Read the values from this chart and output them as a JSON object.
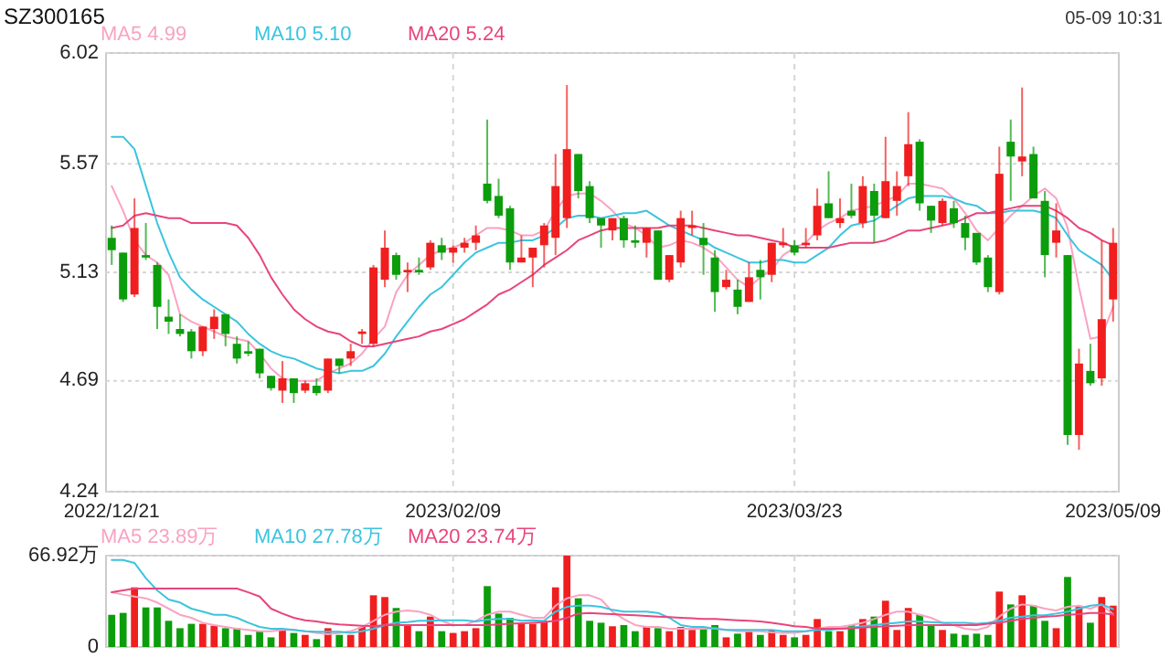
{
  "chart_data": [
    {
      "type": "candlestick",
      "title": "SZ300165",
      "annotations": [
        "05-09 10:31"
      ],
      "categories": [
        "2022/12/21",
        null,
        null,
        null,
        null,
        null,
        null,
        null,
        null,
        null,
        null,
        null,
        null,
        null,
        null,
        null,
        null,
        null,
        null,
        null,
        null,
        null,
        null,
        null,
        null,
        null,
        null,
        null,
        null,
        null,
        "2023/02/09",
        null,
        null,
        null,
        null,
        null,
        null,
        null,
        null,
        null,
        null,
        null,
        null,
        null,
        null,
        null,
        null,
        null,
        null,
        null,
        null,
        null,
        null,
        null,
        null,
        null,
        null,
        null,
        null,
        null,
        "2023/03/23",
        null,
        null,
        null,
        null,
        null,
        null,
        null,
        null,
        null,
        null,
        null,
        null,
        null,
        null,
        null,
        null,
        null,
        null,
        null,
        null,
        null,
        null,
        null,
        null,
        null,
        null,
        null,
        "2023/05/09"
      ],
      "ohlc": [
        [
          5.27,
          5.32,
          5.16,
          5.22
        ],
        [
          5.21,
          5.21,
          5.01,
          5.02
        ],
        [
          5.04,
          5.43,
          5.03,
          5.31
        ],
        [
          5.2,
          5.33,
          5.18,
          5.19
        ],
        [
          5.16,
          5.17,
          4.9,
          4.99
        ],
        [
          4.95,
          5.02,
          4.88,
          4.93
        ],
        [
          4.9,
          4.96,
          4.87,
          4.88
        ],
        [
          4.89,
          4.9,
          4.78,
          4.81
        ],
        [
          4.81,
          4.91,
          4.79,
          4.91
        ],
        [
          4.9,
          4.98,
          4.86,
          4.95
        ],
        [
          4.96,
          4.96,
          4.83,
          4.88
        ],
        [
          4.84,
          4.87,
          4.76,
          4.78
        ],
        [
          4.81,
          4.85,
          4.79,
          4.8
        ],
        [
          4.82,
          4.82,
          4.7,
          4.72
        ],
        [
          4.71,
          4.71,
          4.65,
          4.66
        ],
        [
          4.65,
          4.77,
          4.6,
          4.7
        ],
        [
          4.7,
          4.7,
          4.6,
          4.64
        ],
        [
          4.65,
          4.69,
          4.64,
          4.68
        ],
        [
          4.67,
          4.7,
          4.63,
          4.64
        ],
        [
          4.65,
          4.78,
          4.64,
          4.78
        ],
        [
          4.78,
          4.78,
          4.72,
          4.75
        ],
        [
          4.78,
          4.84,
          4.75,
          4.81
        ],
        [
          4.88,
          4.9,
          4.84,
          4.89
        ],
        [
          4.84,
          5.16,
          4.83,
          5.15
        ],
        [
          5.1,
          5.3,
          5.07,
          5.23
        ],
        [
          5.2,
          5.21,
          5.1,
          5.12
        ],
        [
          5.13,
          5.17,
          5.05,
          5.14
        ],
        [
          5.14,
          5.19,
          5.12,
          5.13
        ],
        [
          5.15,
          5.26,
          5.14,
          5.25
        ],
        [
          5.24,
          5.27,
          5.18,
          5.21
        ],
        [
          5.21,
          5.24,
          5.17,
          5.23
        ],
        [
          5.23,
          5.27,
          5.21,
          5.25
        ],
        [
          5.25,
          5.32,
          5.22,
          5.28
        ],
        [
          5.49,
          5.75,
          5.41,
          5.42
        ],
        [
          5.44,
          5.51,
          5.35,
          5.36
        ],
        [
          5.39,
          5.4,
          5.14,
          5.17
        ],
        [
          5.17,
          5.28,
          5.17,
          5.19
        ],
        [
          5.19,
          5.23,
          5.07,
          5.23
        ],
        [
          5.24,
          5.33,
          5.15,
          5.32
        ],
        [
          5.27,
          5.61,
          5.2,
          5.48
        ],
        [
          5.35,
          5.89,
          5.31,
          5.63
        ],
        [
          5.61,
          5.61,
          5.43,
          5.46
        ],
        [
          5.48,
          5.5,
          5.33,
          5.35
        ],
        [
          5.35,
          5.35,
          5.23,
          5.32
        ],
        [
          5.3,
          5.35,
          5.26,
          5.35
        ],
        [
          5.35,
          5.36,
          5.23,
          5.26
        ],
        [
          5.26,
          5.32,
          5.23,
          5.25
        ],
        [
          5.25,
          5.31,
          5.19,
          5.31
        ],
        [
          5.3,
          5.3,
          5.1,
          5.1
        ],
        [
          5.1,
          5.2,
          5.09,
          5.2
        ],
        [
          5.17,
          5.38,
          5.15,
          5.35
        ],
        [
          5.31,
          5.38,
          5.28,
          5.32
        ],
        [
          5.27,
          5.33,
          5.12,
          5.24
        ],
        [
          5.19,
          5.22,
          4.97,
          5.05
        ],
        [
          5.07,
          5.14,
          5.06,
          5.1
        ],
        [
          5.06,
          5.1,
          4.96,
          4.99
        ],
        [
          5.01,
          5.17,
          5.01,
          5.11
        ],
        [
          5.14,
          5.18,
          5.02,
          5.11
        ],
        [
          5.12,
          5.25,
          5.09,
          5.25
        ],
        [
          5.24,
          5.31,
          5.23,
          5.25
        ],
        [
          5.24,
          5.26,
          5.2,
          5.21
        ],
        [
          5.24,
          5.31,
          5.23,
          5.25
        ],
        [
          5.28,
          5.47,
          5.26,
          5.4
        ],
        [
          5.41,
          5.54,
          5.35,
          5.35
        ],
        [
          5.33,
          5.43,
          5.31,
          5.35
        ],
        [
          5.38,
          5.49,
          5.35,
          5.36
        ],
        [
          5.33,
          5.52,
          5.31,
          5.48
        ],
        [
          5.46,
          5.49,
          5.25,
          5.36
        ],
        [
          5.35,
          5.68,
          5.35,
          5.5
        ],
        [
          5.42,
          5.54,
          5.36,
          5.48
        ],
        [
          5.52,
          5.78,
          5.48,
          5.65
        ],
        [
          5.66,
          5.67,
          5.38,
          5.41
        ],
        [
          5.4,
          5.4,
          5.29,
          5.34
        ],
        [
          5.33,
          5.43,
          5.32,
          5.42
        ],
        [
          5.39,
          5.42,
          5.31,
          5.33
        ],
        [
          5.33,
          5.36,
          5.22,
          5.27
        ],
        [
          5.29,
          5.29,
          5.16,
          5.17
        ],
        [
          5.19,
          5.2,
          5.05,
          5.07
        ],
        [
          5.05,
          5.64,
          5.04,
          5.53
        ],
        [
          5.66,
          5.75,
          5.42,
          5.6
        ],
        [
          5.58,
          5.88,
          5.52,
          5.6
        ],
        [
          5.61,
          5.64,
          5.43,
          5.43
        ],
        [
          5.42,
          5.46,
          5.11,
          5.2
        ],
        [
          5.25,
          5.41,
          5.19,
          5.3
        ],
        [
          5.2,
          5.2,
          4.43,
          4.47
        ],
        [
          4.47,
          4.82,
          4.41,
          4.76
        ],
        [
          4.73,
          4.84,
          4.67,
          4.68
        ],
        [
          4.7,
          5.26,
          4.67,
          4.94
        ],
        [
          5.02,
          5.31,
          4.93,
          5.25
        ]
      ],
      "colors": [
        "#0b9d0b",
        "#0b9d0b",
        "#f01e1e",
        "#0b9d0b",
        "#0b9d0b",
        "#0b9d0b",
        "#0b9d0b",
        "#0b9d0b",
        "#f01e1e",
        "#f01e1e",
        "#0b9d0b",
        "#0b9d0b",
        "#0b9d0b",
        "#0b9d0b",
        "#0b9d0b",
        "#f01e1e",
        "#0b9d0b",
        "#f01e1e",
        "#0b9d0b",
        "#f01e1e",
        "#0b9d0b",
        "#f01e1e",
        "#f01e1e",
        "#f01e1e",
        "#f01e1e",
        "#0b9d0b",
        "#f01e1e",
        "#0b9d0b",
        "#f01e1e",
        "#0b9d0b",
        "#f01e1e",
        "#f01e1e",
        "#f01e1e",
        "#0b9d0b",
        "#0b9d0b",
        "#0b9d0b",
        "#f01e1e",
        "#f01e1e",
        "#f01e1e",
        "#f01e1e",
        "#f01e1e",
        "#0b9d0b",
        "#0b9d0b",
        "#0b9d0b",
        "#f01e1e",
        "#0b9d0b",
        "#0b9d0b",
        "#f01e1e",
        "#0b9d0b",
        "#f01e1e",
        "#f01e1e",
        "#f01e1e",
        "#0b9d0b",
        "#0b9d0b",
        "#f01e1e",
        "#0b9d0b",
        "#f01e1e",
        "#0b9d0b",
        "#f01e1e",
        "#f01e1e",
        "#0b9d0b",
        "#f01e1e",
        "#f01e1e",
        "#0b9d0b",
        "#f01e1e",
        "#0b9d0b",
        "#f01e1e",
        "#0b9d0b",
        "#f01e1e",
        "#f01e1e",
        "#f01e1e",
        "#0b9d0b",
        "#0b9d0b",
        "#f01e1e",
        "#0b9d0b",
        "#0b9d0b",
        "#0b9d0b",
        "#0b9d0b",
        "#f01e1e",
        "#0b9d0b",
        "#f01e1e",
        "#0b9d0b",
        "#0b9d0b",
        "#f01e1e",
        "#0b9d0b",
        "#f01e1e",
        "#0b9d0b",
        "#f01e1e",
        "#f01e1e"
      ],
      "series": [
        {
          "name": "MA5 4.99",
          "type": "line",
          "color": "#f9a3c2",
          "values": [
            5.48,
            5.38,
            5.26,
            5.2,
            5.17,
            5.12,
            4.96,
            4.93,
            4.91,
            4.89,
            4.87,
            4.86,
            4.85,
            4.8,
            4.74,
            4.7,
            4.69,
            4.69,
            4.69,
            4.72,
            4.74,
            4.76,
            4.8,
            4.86,
            4.91,
            5.05,
            5.12,
            5.16,
            5.2,
            5.22,
            5.23,
            5.25,
            5.28,
            5.31,
            5.31,
            5.3,
            5.28,
            5.28,
            5.3,
            5.38,
            5.44,
            5.45,
            5.45,
            5.42,
            5.38,
            5.33,
            5.31,
            5.28,
            5.23,
            5.24,
            5.26,
            5.25,
            5.23,
            5.2,
            5.15,
            5.1,
            5.07,
            5.11,
            5.14,
            5.2,
            5.23,
            5.25,
            5.3,
            5.33,
            5.35,
            5.38,
            5.39,
            5.4,
            5.42,
            5.44,
            5.49,
            5.49,
            5.48,
            5.47,
            5.43,
            5.37,
            5.3,
            5.26,
            5.31,
            5.36,
            5.4,
            5.44,
            5.47,
            5.43,
            5.31,
            5.07,
            4.86,
            4.87,
            4.99
          ]
        },
        {
          "name": "MA10 5.10",
          "type": "line",
          "color": "#3cc4de",
          "values": [
            5.68,
            5.68,
            5.63,
            5.48,
            5.33,
            5.21,
            5.11,
            5.06,
            5.02,
            4.99,
            4.96,
            4.93,
            4.88,
            4.84,
            4.81,
            4.79,
            4.78,
            4.76,
            4.74,
            4.73,
            4.72,
            4.73,
            4.73,
            4.75,
            4.8,
            4.87,
            4.93,
            4.99,
            5.04,
            5.07,
            5.12,
            5.17,
            5.21,
            5.23,
            5.25,
            5.25,
            5.26,
            5.26,
            5.28,
            5.31,
            5.35,
            5.36,
            5.36,
            5.35,
            5.36,
            5.37,
            5.37,
            5.38,
            5.35,
            5.32,
            5.3,
            5.28,
            5.26,
            5.23,
            5.21,
            5.19,
            5.17,
            5.17,
            5.18,
            5.18,
            5.17,
            5.17,
            5.2,
            5.23,
            5.28,
            5.32,
            5.33,
            5.34,
            5.37,
            5.4,
            5.43,
            5.44,
            5.44,
            5.44,
            5.43,
            5.41,
            5.4,
            5.37,
            5.37,
            5.38,
            5.38,
            5.38,
            5.37,
            5.35,
            5.28,
            5.22,
            5.19,
            5.16,
            5.1
          ]
        },
        {
          "name": "MA20 5.24",
          "type": "line",
          "color": "#e8457c",
          "values": [
            5.31,
            5.32,
            5.36,
            5.37,
            5.36,
            5.35,
            5.35,
            5.33,
            5.33,
            5.33,
            5.33,
            5.32,
            5.27,
            5.2,
            5.11,
            5.04,
            4.98,
            4.94,
            4.91,
            4.89,
            4.88,
            4.85,
            4.83,
            4.83,
            4.84,
            4.85,
            4.86,
            4.87,
            4.89,
            4.9,
            4.92,
            4.94,
            4.97,
            5.0,
            5.04,
            5.06,
            5.09,
            5.12,
            5.16,
            5.19,
            5.22,
            5.26,
            5.28,
            5.3,
            5.31,
            5.31,
            5.31,
            5.31,
            5.31,
            5.32,
            5.32,
            5.32,
            5.31,
            5.3,
            5.29,
            5.28,
            5.28,
            5.27,
            5.26,
            5.25,
            5.23,
            5.23,
            5.23,
            5.23,
            5.24,
            5.25,
            5.25,
            5.25,
            5.26,
            5.28,
            5.3,
            5.3,
            5.31,
            5.32,
            5.33,
            5.35,
            5.37,
            5.37,
            5.38,
            5.39,
            5.4,
            5.4,
            5.4,
            5.38,
            5.35,
            5.31,
            5.29,
            5.26,
            5.24
          ]
        }
      ],
      "ylim": [
        4.24,
        6.02
      ],
      "yticks": [
        6.02,
        5.57,
        5.13,
        4.69,
        4.24
      ],
      "grid": true,
      "legend": "top left"
    },
    {
      "type": "bar",
      "categories": [
        "2022/12/21",
        null,
        null,
        null,
        null,
        null,
        null,
        null,
        null,
        null,
        null,
        null,
        null,
        null,
        null,
        null,
        null,
        null,
        null,
        null,
        null,
        null,
        null,
        null,
        null,
        null,
        null,
        null,
        null,
        null,
        "2023/02/09",
        null,
        null,
        null,
        null,
        null,
        null,
        null,
        null,
        null,
        null,
        null,
        null,
        null,
        null,
        null,
        null,
        null,
        null,
        null,
        null,
        null,
        null,
        null,
        null,
        null,
        null,
        null,
        null,
        null,
        "2023/03/23",
        null,
        null,
        null,
        null,
        null,
        null,
        null,
        null,
        null,
        null,
        null,
        null,
        null,
        null,
        null,
        null,
        null,
        null,
        null,
        null,
        null,
        null,
        null,
        null,
        null,
        null,
        null,
        "2023/05/09"
      ],
      "values": [
        23.6,
        25.0,
        43.7,
        29.0,
        29.0,
        19.2,
        13.8,
        17.0,
        17.0,
        15.6,
        13.8,
        13.8,
        8.9,
        11.6,
        7.1,
        13.4,
        10.3,
        8.9,
        5.8,
        13.8,
        8.9,
        8.9,
        14.7,
        37.9,
        36.6,
        28.6,
        15.6,
        11.6,
        22.3,
        11.6,
        10.3,
        11.6,
        13.8,
        44.6,
        24.5,
        21.4,
        17.0,
        17.0,
        19.2,
        43.7,
        66.92,
        35.7,
        19.2,
        17.8,
        15.2,
        16.1,
        11.6,
        14.7,
        13.8,
        11.6,
        14.7,
        12.5,
        13.8,
        16.1,
        7.1,
        9.8,
        11.6,
        8.9,
        12.5,
        8.9,
        7.1,
        8.9,
        20.5,
        11.6,
        11.6,
        16.1,
        20.5,
        22.3,
        33.9,
        12.5,
        28.6,
        23.6,
        15.6,
        12.5,
        9.8,
        8.9,
        9.8,
        8.9,
        40.6,
        31.2,
        37.9,
        30.3,
        19.2,
        13.8,
        51.3,
        29.4,
        17.8,
        36.6,
        30.3
      ],
      "colors": [
        "#0b9d0b",
        "#0b9d0b",
        "#f01e1e",
        "#0b9d0b",
        "#0b9d0b",
        "#0b9d0b",
        "#0b9d0b",
        "#0b9d0b",
        "#f01e1e",
        "#f01e1e",
        "#0b9d0b",
        "#0b9d0b",
        "#0b9d0b",
        "#0b9d0b",
        "#0b9d0b",
        "#f01e1e",
        "#0b9d0b",
        "#f01e1e",
        "#0b9d0b",
        "#f01e1e",
        "#0b9d0b",
        "#f01e1e",
        "#f01e1e",
        "#f01e1e",
        "#f01e1e",
        "#0b9d0b",
        "#f01e1e",
        "#0b9d0b",
        "#f01e1e",
        "#0b9d0b",
        "#f01e1e",
        "#f01e1e",
        "#f01e1e",
        "#0b9d0b",
        "#0b9d0b",
        "#0b9d0b",
        "#f01e1e",
        "#f01e1e",
        "#f01e1e",
        "#f01e1e",
        "#f01e1e",
        "#0b9d0b",
        "#0b9d0b",
        "#0b9d0b",
        "#f01e1e",
        "#0b9d0b",
        "#0b9d0b",
        "#f01e1e",
        "#0b9d0b",
        "#f01e1e",
        "#f01e1e",
        "#f01e1e",
        "#0b9d0b",
        "#0b9d0b",
        "#f01e1e",
        "#0b9d0b",
        "#f01e1e",
        "#0b9d0b",
        "#f01e1e",
        "#f01e1e",
        "#0b9d0b",
        "#f01e1e",
        "#f01e1e",
        "#0b9d0b",
        "#f01e1e",
        "#0b9d0b",
        "#f01e1e",
        "#0b9d0b",
        "#f01e1e",
        "#f01e1e",
        "#f01e1e",
        "#0b9d0b",
        "#0b9d0b",
        "#f01e1e",
        "#0b9d0b",
        "#0b9d0b",
        "#0b9d0b",
        "#0b9d0b",
        "#f01e1e",
        "#0b9d0b",
        "#f01e1e",
        "#0b9d0b",
        "#0b9d0b",
        "#f01e1e",
        "#0b9d0b",
        "#f01e1e",
        "#0b9d0b",
        "#f01e1e",
        "#f01e1e"
      ],
      "series": [
        {
          "name": "MA5 23.89万",
          "type": "line",
          "color": "#f9a3c2",
          "values": [
            40.1,
            38.4,
            37.0,
            35.7,
            32.6,
            28.1,
            23.6,
            21.4,
            17.8,
            16.1,
            14.7,
            13.4,
            12.5,
            11.6,
            11.6,
            12.5,
            12.5,
            11.6,
            10.3,
            9.4,
            10.3,
            11.6,
            14.7,
            19.2,
            23.6,
            25.9,
            26.8,
            25.9,
            23.6,
            19.2,
            16.1,
            16.1,
            19.2,
            23.6,
            25.9,
            25.9,
            23.6,
            21.4,
            21.4,
            30.3,
            35.7,
            37.9,
            37.9,
            34.8,
            25.9,
            20.5,
            16.1,
            14.7,
            14.7,
            13.4,
            13.4,
            13.4,
            13.4,
            13.8,
            12.5,
            11.6,
            11.6,
            11.6,
            10.7,
            10.3,
            10.3,
            11.6,
            13.4,
            14.7,
            14.7,
            16.1,
            17.8,
            20.5,
            23.6,
            25.9,
            25.9,
            23.6,
            21.4,
            17.8,
            16.1,
            13.4,
            12.5,
            14.7,
            22.3,
            28.1,
            31.2,
            30.3,
            28.1,
            26.8,
            29.4,
            30.3,
            28.1,
            31.2,
            23.89
          ]
        },
        {
          "name": "MA10 27.78万",
          "type": "line",
          "color": "#3cc4de",
          "values": [
            63.8,
            63.8,
            61.6,
            50.4,
            41.5,
            34.8,
            32.6,
            28.1,
            25.9,
            23.6,
            23.6,
            21.4,
            17.8,
            14.7,
            13.4,
            13.4,
            12.5,
            11.6,
            11.2,
            11.2,
            11.2,
            10.3,
            11.6,
            13.4,
            16.1,
            17.8,
            18.2,
            19.2,
            19.2,
            19.6,
            19.6,
            19.6,
            18.7,
            20.1,
            20.5,
            20.5,
            19.2,
            19.6,
            19.2,
            25.9,
            29.4,
            30.3,
            30.3,
            29.4,
            27.2,
            25.9,
            25.9,
            25.9,
            25.0,
            21.4,
            16.1,
            14.7,
            14.7,
            13.4,
            12.5,
            12.5,
            12.5,
            12.5,
            12.5,
            11.6,
            11.6,
            11.6,
            12.5,
            12.5,
            13.4,
            14.3,
            15.2,
            16.1,
            17.0,
            17.8,
            18.7,
            18.7,
            18.2,
            17.8,
            17.8,
            17.8,
            17.0,
            17.8,
            19.2,
            21.4,
            22.3,
            23.2,
            23.2,
            24.5,
            25.9,
            28.1,
            30.3,
            31.2,
            27.78
          ]
        },
        {
          "name": "MA20 23.74万",
          "type": "line",
          "color": "#e8457c",
          "values": [
            40.1,
            41.5,
            42.8,
            42.8,
            42.8,
            42.8,
            42.8,
            42.8,
            42.8,
            42.8,
            42.8,
            42.8,
            40.1,
            37.0,
            28.1,
            24.5,
            21.4,
            19.6,
            18.7,
            17.4,
            16.5,
            16.1,
            15.6,
            15.2,
            16.1,
            16.1,
            16.1,
            16.1,
            16.1,
            16.1,
            16.1,
            16.1,
            16.1,
            16.1,
            16.5,
            17.0,
            17.4,
            17.8,
            18.3,
            19.2,
            21.4,
            24.5,
            25.0,
            24.5,
            24.1,
            23.6,
            23.2,
            22.8,
            22.3,
            21.9,
            21.4,
            21.0,
            20.5,
            20.5,
            20.1,
            19.6,
            19.2,
            18.7,
            17.8,
            16.5,
            15.2,
            14.7,
            13.4,
            13.4,
            13.4,
            13.8,
            14.3,
            14.7,
            15.2,
            15.6,
            16.1,
            16.1,
            16.1,
            16.1,
            16.1,
            16.1,
            16.1,
            17.0,
            17.8,
            19.2,
            20.5,
            21.4,
            22.3,
            22.8,
            23.6,
            24.1,
            25.0,
            25.0,
            23.74
          ]
        }
      ],
      "ylim": [
        0,
        66.92
      ],
      "yticks": [
        0,
        {
          "value": 66.92,
          "label": "66.92万"
        }
      ],
      "grid": true,
      "legend": "top left",
      "tick_labels": "y"
    }
  ]
}
